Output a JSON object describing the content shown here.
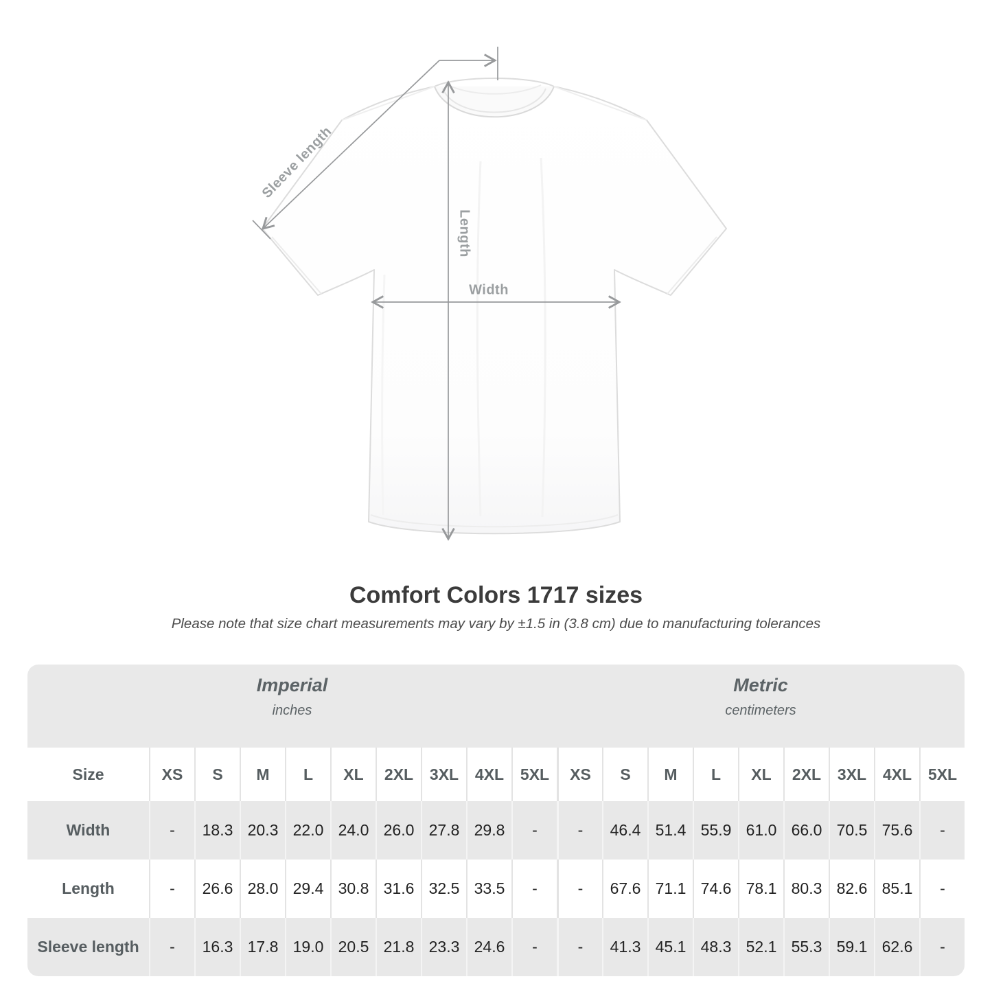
{
  "diagram": {
    "labels": {
      "sleeve_length": "Sleeve length",
      "length": "Length",
      "width": "Width"
    },
    "line_color": "#97999b",
    "label_color": "#9b9fa1"
  },
  "title": "Comfort Colors 1717 sizes",
  "subtitle": "Please note that size chart measurements may vary by ±1.5 in (3.8 cm) due to manufacturing tolerances",
  "table": {
    "sections": [
      {
        "label": "Imperial",
        "sublabel": "inches"
      },
      {
        "label": "Metric",
        "sublabel": "centimeters"
      }
    ],
    "size_header": "Size",
    "sizes": [
      "XS",
      "S",
      "M",
      "L",
      "XL",
      "2XL",
      "3XL",
      "4XL",
      "5XL"
    ],
    "rows": [
      {
        "label": "Width",
        "imperial": [
          "-",
          "18.3",
          "20.3",
          "22.0",
          "24.0",
          "26.0",
          "27.8",
          "29.8",
          "-"
        ],
        "metric": [
          "-",
          "46.4",
          "51.4",
          "55.9",
          "61.0",
          "66.0",
          "70.5",
          "75.6",
          "-"
        ]
      },
      {
        "label": "Length",
        "imperial": [
          "-",
          "26.6",
          "28.0",
          "29.4",
          "30.8",
          "31.6",
          "32.5",
          "33.5",
          "-"
        ],
        "metric": [
          "-",
          "67.6",
          "71.1",
          "74.6",
          "78.1",
          "80.3",
          "82.6",
          "85.1",
          "-"
        ]
      },
      {
        "label": "Sleeve length",
        "imperial": [
          "-",
          "16.3",
          "17.8",
          "19.0",
          "20.5",
          "21.8",
          "23.3",
          "24.6",
          "-"
        ],
        "metric": [
          "-",
          "41.3",
          "45.1",
          "48.3",
          "52.1",
          "55.3",
          "59.1",
          "62.6",
          "-"
        ]
      }
    ]
  },
  "chart_data": {
    "type": "table",
    "title": "Comfort Colors 1717 sizes",
    "note": "Please note that size chart measurements may vary by ±1.5 in (3.8 cm) due to manufacturing tolerances",
    "units": [
      "inches",
      "centimeters"
    ],
    "columns": [
      "Size",
      "XS",
      "S",
      "M",
      "L",
      "XL",
      "2XL",
      "3XL",
      "4XL",
      "5XL"
    ],
    "imperial_rows": [
      [
        "Width",
        null,
        18.3,
        20.3,
        22.0,
        24.0,
        26.0,
        27.8,
        29.8,
        null
      ],
      [
        "Length",
        null,
        26.6,
        28.0,
        29.4,
        30.8,
        31.6,
        32.5,
        33.5,
        null
      ],
      [
        "Sleeve length",
        null,
        16.3,
        17.8,
        19.0,
        20.5,
        21.8,
        23.3,
        24.6,
        null
      ]
    ],
    "metric_rows": [
      [
        "Width",
        null,
        46.4,
        51.4,
        55.9,
        61.0,
        66.0,
        70.5,
        75.6,
        null
      ],
      [
        "Length",
        null,
        67.6,
        71.1,
        74.6,
        78.1,
        80.3,
        82.6,
        85.1,
        null
      ],
      [
        "Sleeve length",
        null,
        41.3,
        45.1,
        48.3,
        52.1,
        55.3,
        59.1,
        62.6,
        null
      ]
    ]
  }
}
